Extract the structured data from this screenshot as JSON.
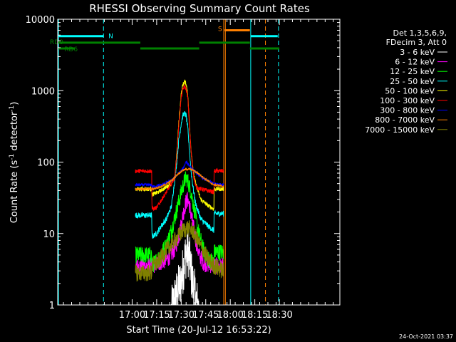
{
  "chart_data": {
    "type": "line",
    "title": "RHESSI Observing Summary Count Rates",
    "xlabel": "Start Time (20-Jul-12 16:53:22)",
    "ylabel_prefix": "Count Rate (s",
    "ylabel_sup1": "-1",
    "ylabel_mid": " detector",
    "ylabel_sup2": "-1",
    "ylabel_suffix": ")",
    "yscale": "log",
    "xlim_min": [
      16.5,
      189.0
    ],
    "ylim": [
      1,
      10000
    ],
    "xticks": [
      {
        "min": 62,
        "label": "17:00"
      },
      {
        "min": 77,
        "label": "17:15"
      },
      {
        "min": 92,
        "label": "17:30"
      },
      {
        "min": 107,
        "label": "17:45"
      },
      {
        "min": 122,
        "label": "18:00"
      },
      {
        "min": 137,
        "label": "18:15"
      },
      {
        "min": 152,
        "label": "18:30"
      }
    ],
    "yticks": [
      {
        "v": 1,
        "label": "1"
      },
      {
        "v": 10,
        "label": "10"
      },
      {
        "v": 100,
        "label": "100"
      },
      {
        "v": 1000,
        "label": "1000"
      },
      {
        "v": 10000,
        "label": "10000"
      }
    ],
    "legend_header": [
      "Det 1,3,5,6,9,",
      "FDecim 3, Att 0"
    ],
    "legend_position": "right",
    "series": [
      {
        "name": "3 - 6 keV",
        "color": "#ffffff",
        "points": [
          [
            86,
            0.8
          ],
          [
            88,
            1.2
          ],
          [
            90,
            1.6
          ],
          [
            92,
            2.2
          ],
          [
            93,
            3.0
          ],
          [
            94,
            4.2
          ],
          [
            95,
            5.2
          ],
          [
            96,
            5.8
          ],
          [
            97,
            4.5
          ],
          [
            98,
            3.0
          ],
          [
            99,
            2.0
          ],
          [
            101,
            1.2
          ],
          [
            103,
            0.8
          ]
        ]
      },
      {
        "name": "6 - 12 keV",
        "color": "#ff00ff",
        "points": [
          [
            64,
            3.5
          ],
          [
            74,
            3.5
          ],
          [
            76,
            3.7
          ],
          [
            80,
            4.0
          ],
          [
            84,
            4.5
          ],
          [
            88,
            6
          ],
          [
            91,
            10
          ],
          [
            93,
            18
          ],
          [
            95,
            28
          ],
          [
            96,
            30
          ],
          [
            97,
            25
          ],
          [
            99,
            14
          ],
          [
            101,
            8
          ],
          [
            103,
            5
          ],
          [
            106,
            3.8
          ],
          [
            114,
            3.5
          ],
          [
            118,
            3.5
          ]
        ]
      },
      {
        "name": "12 - 25 keV",
        "color": "#00ff00",
        "points": [
          [
            64,
            5
          ],
          [
            74,
            5
          ],
          [
            74.1,
            3.5
          ],
          [
            78,
            4.5
          ],
          [
            83,
            7
          ],
          [
            86,
            11
          ],
          [
            89,
            20
          ],
          [
            92,
            38
          ],
          [
            94,
            54
          ],
          [
            95,
            60
          ],
          [
            96,
            55
          ],
          [
            98,
            38
          ],
          [
            100,
            22
          ],
          [
            102,
            12
          ],
          [
            105,
            6.5
          ],
          [
            108,
            4.5
          ],
          [
            112,
            4.0
          ],
          [
            112.1,
            5.5
          ],
          [
            118,
            5.5
          ]
        ]
      },
      {
        "name": "25 - 50 keV",
        "color": "#00ffff",
        "points": [
          [
            64,
            18
          ],
          [
            74,
            18
          ],
          [
            74.1,
            9
          ],
          [
            77,
            10
          ],
          [
            80,
            13
          ],
          [
            83,
            16
          ],
          [
            86,
            24
          ],
          [
            88,
            55
          ],
          [
            89.5,
            110
          ],
          [
            90.5,
            200
          ],
          [
            92,
            350
          ],
          [
            93,
            450
          ],
          [
            94,
            480
          ],
          [
            95,
            450
          ],
          [
            96,
            300
          ],
          [
            97,
            150
          ],
          [
            98,
            75
          ],
          [
            99.5,
            40
          ],
          [
            101,
            25
          ],
          [
            104,
            16
          ],
          [
            108,
            13
          ],
          [
            112,
            11
          ],
          [
            112.1,
            19
          ],
          [
            118,
            19
          ]
        ]
      },
      {
        "name": "50 - 100 keV",
        "color": "#ffff00",
        "points": [
          [
            64,
            42
          ],
          [
            74,
            42
          ],
          [
            74.1,
            35
          ],
          [
            78,
            38
          ],
          [
            83,
            45
          ],
          [
            86,
            50
          ],
          [
            88,
            60
          ],
          [
            89.5,
            150
          ],
          [
            90.5,
            350
          ],
          [
            92,
            900
          ],
          [
            93,
            1200
          ],
          [
            94,
            1350
          ],
          [
            95,
            1250
          ],
          [
            96,
            900
          ],
          [
            97,
            350
          ],
          [
            98,
            150
          ],
          [
            99.5,
            70
          ],
          [
            101,
            48
          ],
          [
            104,
            30
          ],
          [
            108,
            25
          ],
          [
            112,
            22
          ],
          [
            112.1,
            42
          ],
          [
            118,
            42
          ]
        ]
      },
      {
        "name": "100 - 300 keV",
        "color": "#ff0000",
        "points": [
          [
            64,
            75
          ],
          [
            74,
            75
          ],
          [
            74.1,
            22
          ],
          [
            77,
            23
          ],
          [
            80,
            30
          ],
          [
            83,
            38
          ],
          [
            86,
            50
          ],
          [
            88,
            60
          ],
          [
            89.5,
            140
          ],
          [
            90.5,
            320
          ],
          [
            92,
            800
          ],
          [
            93,
            1050
          ],
          [
            94,
            1150
          ],
          [
            95,
            1050
          ],
          [
            96,
            800
          ],
          [
            97,
            330
          ],
          [
            98,
            140
          ],
          [
            99.5,
            65
          ],
          [
            101,
            45
          ],
          [
            104,
            42
          ],
          [
            108,
            40
          ],
          [
            112,
            38
          ],
          [
            112.1,
            75
          ],
          [
            118,
            75
          ]
        ]
      },
      {
        "name": "300 - 800 keV",
        "color": "#0000ff",
        "points": [
          [
            64,
            48
          ],
          [
            74,
            48
          ],
          [
            74.1,
            45
          ],
          [
            80,
            48
          ],
          [
            86,
            55
          ],
          [
            90,
            68
          ],
          [
            93,
            80
          ],
          [
            95,
            100
          ],
          [
            97,
            90
          ],
          [
            100,
            75
          ],
          [
            104,
            62
          ],
          [
            108,
            55
          ],
          [
            112,
            50
          ],
          [
            118,
            48
          ]
        ]
      },
      {
        "name": "800 - 7000 keV",
        "color": "#ff8000",
        "points": [
          [
            64,
            42
          ],
          [
            74,
            42
          ],
          [
            80,
            45
          ],
          [
            86,
            55
          ],
          [
            90,
            68
          ],
          [
            93,
            77
          ],
          [
            96,
            80
          ],
          [
            99,
            78
          ],
          [
            103,
            68
          ],
          [
            108,
            55
          ],
          [
            112,
            48
          ],
          [
            116,
            47
          ],
          [
            118,
            45
          ]
        ]
      },
      {
        "name": "7000 - 15000 keV",
        "color": "#808000",
        "points": [
          [
            64,
            2.8
          ],
          [
            74,
            2.8
          ],
          [
            74.1,
            3.5
          ],
          [
            78,
            4
          ],
          [
            82,
            5.5
          ],
          [
            86,
            7
          ],
          [
            90,
            9
          ],
          [
            93,
            11
          ],
          [
            96,
            12
          ],
          [
            99,
            11
          ],
          [
            102,
            8
          ],
          [
            105,
            6
          ],
          [
            108,
            4.5
          ],
          [
            112,
            3.5
          ],
          [
            118,
            3
          ]
        ]
      }
    ],
    "flag_bars": [
      {
        "label": "N",
        "color": "#00ffff",
        "level": 5800,
        "segments": [
          [
            17,
            44.5
          ],
          [
            134.5,
            151
          ]
        ]
      },
      {
        "label": "RD0",
        "color": "#008000",
        "level": 4700,
        "segments": [
          [
            17,
            67
          ],
          [
            103,
            134
          ]
        ]
      },
      {
        "label": "RD6",
        "color": "#008000",
        "level": 3900,
        "segments": [
          [
            17,
            27
          ],
          [
            67,
            103
          ],
          [
            134,
            152
          ]
        ]
      },
      {
        "label": "S",
        "color": "#ff8000",
        "level": 7000,
        "segments": [
          [
            118.5,
            134
          ]
        ]
      }
    ],
    "vlines": [
      {
        "min": 17,
        "color": "#00ffff",
        "style": "solid"
      },
      {
        "min": 44.5,
        "color": "#00ffff",
        "style": "dashed"
      },
      {
        "min": 118,
        "color": "#ff8000",
        "style": "solid"
      },
      {
        "min": 119,
        "color": "#ff8000",
        "style": "solid"
      },
      {
        "min": 134.5,
        "color": "#00ffff",
        "style": "solid"
      },
      {
        "min": 143.5,
        "color": "#ff8000",
        "style": "dashed"
      },
      {
        "min": 151.5,
        "color": "#00ffff",
        "style": "dashed"
      }
    ],
    "timestamp": "24-Oct-2021 03:37"
  }
}
